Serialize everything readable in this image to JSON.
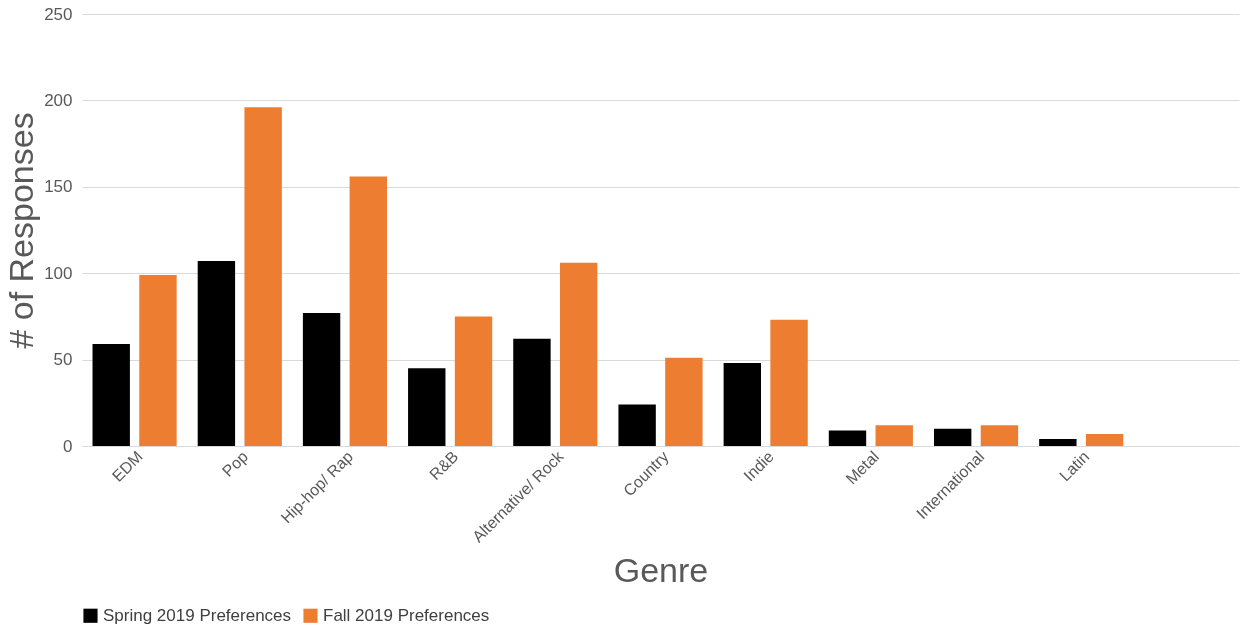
{
  "chart_data": {
    "type": "bar",
    "xlabel": "Genre",
    "ylabel": "# of  Responses",
    "categories": [
      "EDM",
      "Pop",
      "Hip-hop/ Rap",
      "R&B",
      "Alternative/ Rock",
      "Country",
      "Indie",
      "Metal",
      "International",
      "Latin",
      null
    ],
    "series": [
      {
        "name": "Spring 2019 Preferences",
        "color": "#000000",
        "values": [
          59,
          107,
          77,
          45,
          62,
          24,
          48,
          9,
          10,
          4,
          null
        ]
      },
      {
        "name": "Fall 2019 Preferences",
        "color": "#ed7d31",
        "values": [
          99,
          196,
          156,
          75,
          106,
          51,
          73,
          12,
          12,
          7,
          null
        ]
      }
    ],
    "ylim": [
      0,
      250
    ],
    "yticks": [
      0,
      50,
      100,
      150,
      200,
      250
    ],
    "grid": "y",
    "legend": "bottom"
  }
}
